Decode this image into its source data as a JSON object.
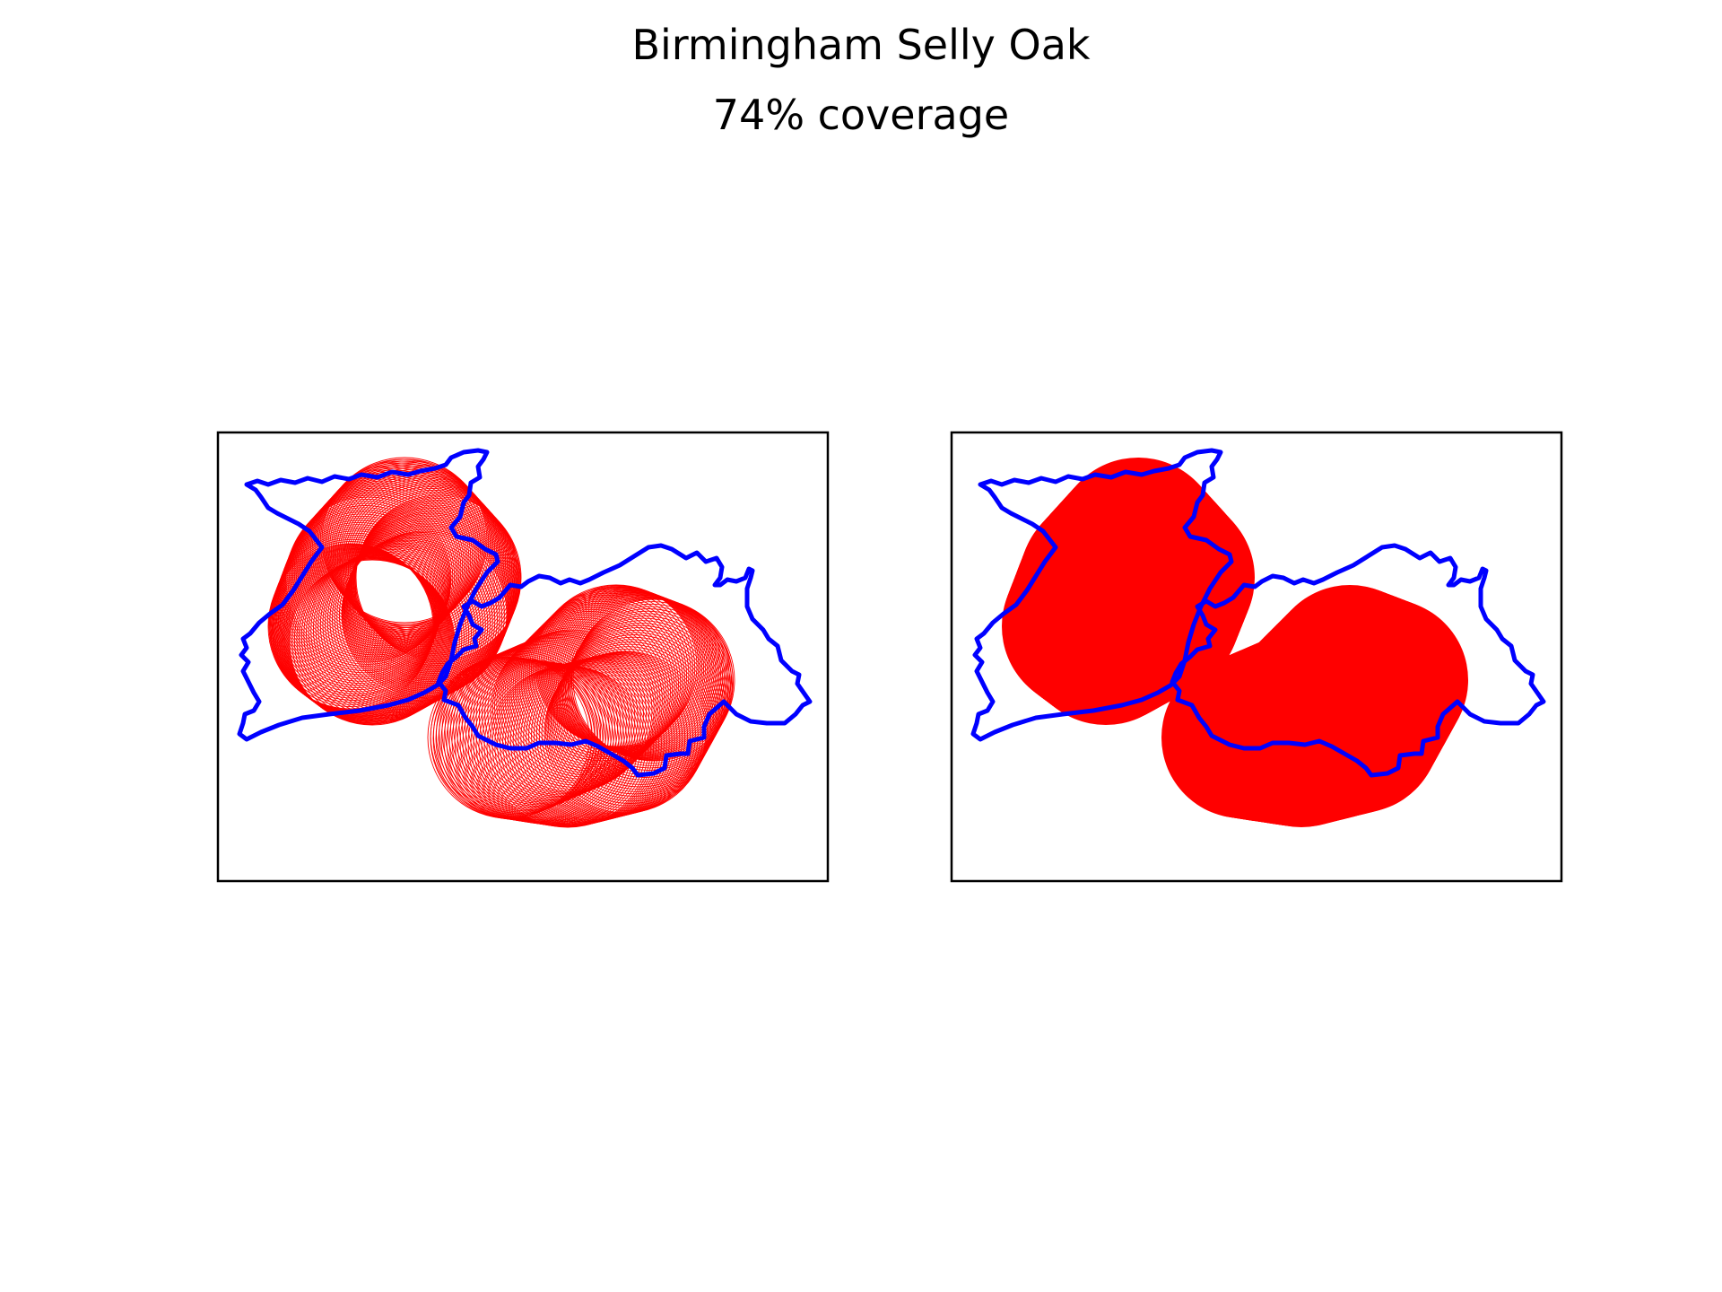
{
  "figure": {
    "title": "Birmingham Selly Oak",
    "subtitle": "74% coverage"
  },
  "colors": {
    "boundary": "#0000ff",
    "coverage": "#ff0000",
    "frame": "#000000",
    "background": "#ffffff"
  },
  "panels": [
    {
      "style": "circle-outlines"
    },
    {
      "style": "filled-union"
    }
  ],
  "map_data": {
    "coverage_percent": 74,
    "axes_ticks_visible": false
  }
}
